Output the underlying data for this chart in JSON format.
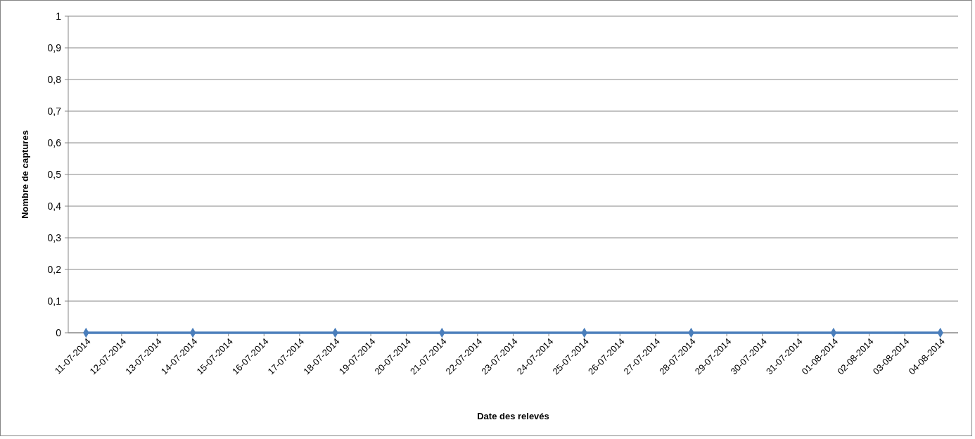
{
  "chart_data": {
    "type": "line",
    "xlabel": "Date des relevés",
    "ylabel": "Nombre de captures",
    "x": [
      "2014-07-11",
      "2014-07-14",
      "2014-07-18",
      "2014-07-21",
      "2014-07-25",
      "2014-07-28",
      "2014-08-01",
      "2014-08-04"
    ],
    "series": [
      {
        "color": "#4a7ebb",
        "values": [
          0,
          0,
          0,
          0,
          0,
          0,
          0,
          0
        ]
      }
    ],
    "xlim": [
      "2014-07-10T12:00",
      "2014-08-04T12:00"
    ],
    "xticks": [
      {
        "value": "2014-07-11",
        "label": "11-07-2014"
      },
      {
        "value": "2014-07-12",
        "label": "12-07-2014"
      },
      {
        "value": "2014-07-13",
        "label": "13-07-2014"
      },
      {
        "value": "2014-07-14",
        "label": "14-07-2014"
      },
      {
        "value": "2014-07-15",
        "label": "15-07-2014"
      },
      {
        "value": "2014-07-16",
        "label": "16-07-2014"
      },
      {
        "value": "2014-07-17",
        "label": "17-07-2014"
      },
      {
        "value": "2014-07-18",
        "label": "18-07-2014"
      },
      {
        "value": "2014-07-19",
        "label": "19-07-2014"
      },
      {
        "value": "2014-07-20",
        "label": "20-07-2014"
      },
      {
        "value": "2014-07-21",
        "label": "21-07-2014"
      },
      {
        "value": "2014-07-22",
        "label": "22-07-2014"
      },
      {
        "value": "2014-07-23",
        "label": "23-07-2014"
      },
      {
        "value": "2014-07-24",
        "label": "24-07-2014"
      },
      {
        "value": "2014-07-25",
        "label": "25-07-2014"
      },
      {
        "value": "2014-07-26",
        "label": "26-07-2014"
      },
      {
        "value": "2014-07-27",
        "label": "27-07-2014"
      },
      {
        "value": "2014-07-28",
        "label": "28-07-2014"
      },
      {
        "value": "2014-07-29",
        "label": "29-07-2014"
      },
      {
        "value": "2014-07-30",
        "label": "30-07-2014"
      },
      {
        "value": "2014-07-31",
        "label": "31-07-2014"
      },
      {
        "value": "2014-08-01",
        "label": "01-08-2014"
      },
      {
        "value": "2014-08-02",
        "label": "02-08-2014"
      },
      {
        "value": "2014-08-03",
        "label": "03-08-2014"
      },
      {
        "value": "2014-08-04",
        "label": "04-08-2014"
      }
    ],
    "ylim": [
      0,
      1
    ],
    "yticks": [
      0,
      {
        "value": 0.1,
        "label": "0,1"
      },
      {
        "value": 0.2,
        "label": "0,2"
      },
      {
        "value": 0.3,
        "label": "0,3"
      },
      {
        "value": 0.4,
        "label": "0,4"
      },
      {
        "value": 0.5,
        "label": "0,5"
      },
      {
        "value": 0.6,
        "label": "0,6"
      },
      {
        "value": 0.7,
        "label": "0,7"
      },
      {
        "value": 0.8,
        "label": "0,8"
      },
      {
        "value": 0.9,
        "label": "0,9"
      },
      1
    ],
    "grid": "y",
    "marker": "diamond",
    "line_style": "solid"
  }
}
